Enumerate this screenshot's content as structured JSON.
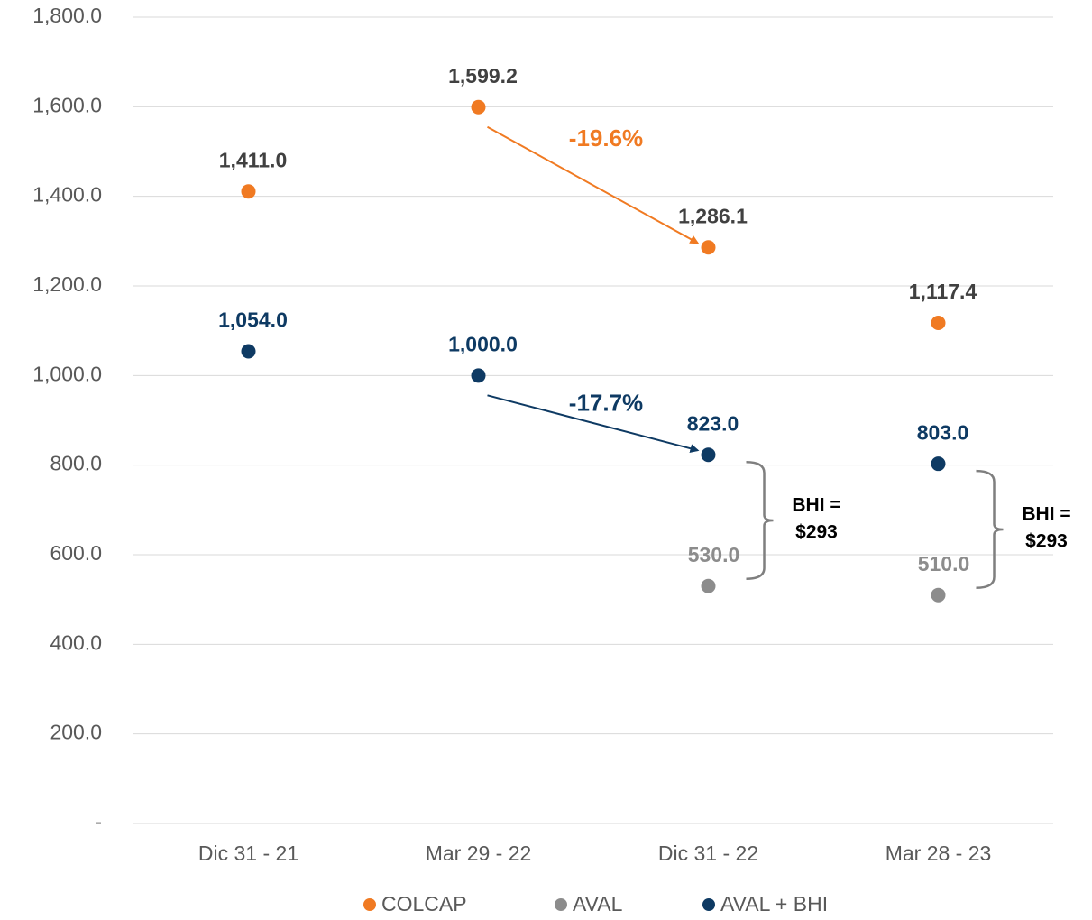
{
  "chart_data": {
    "type": "scatter",
    "categories": [
      "Dic 31 - 21",
      "Mar 29 - 22",
      "Dic 31 - 22",
      "Mar 28 - 23"
    ],
    "series": [
      {
        "name": "COLCAP",
        "color": "#f07a22",
        "label_color": "#404040",
        "values": [
          1411.0,
          1599.2,
          1286.1,
          1117.4
        ],
        "value_labels": [
          "1,411.0",
          "1,599.2",
          "1,286.1",
          "1,117.4"
        ]
      },
      {
        "name": "AVAL",
        "color": "#8c8c8c",
        "label_color": "#8c8c8c",
        "values": [
          null,
          null,
          530.0,
          510.0
        ],
        "value_labels": [
          null,
          null,
          "530.0",
          "510.0"
        ]
      },
      {
        "name": "AVAL + BHI",
        "color": "#0e3a63",
        "label_color": "#0e3a63",
        "values": [
          1054.0,
          1000.0,
          823.0,
          803.0
        ],
        "value_labels": [
          "1,054.0",
          "1,000.0",
          "823.0",
          "803.0"
        ]
      }
    ],
    "ylim": [
      0,
      1800
    ],
    "yticks": [
      {
        "value": 0,
        "label": "-"
      },
      {
        "value": 200,
        "label": "200.0"
      },
      {
        "value": 400,
        "label": "400.0"
      },
      {
        "value": 600,
        "label": "600.0"
      },
      {
        "value": 800,
        "label": "800.0"
      },
      {
        "value": 1000,
        "label": "1,000.0"
      },
      {
        "value": 1200,
        "label": "1,200.0"
      },
      {
        "value": 1400,
        "label": "1,400.0"
      },
      {
        "value": 1600,
        "label": "1,600.0"
      },
      {
        "value": 1800,
        "label": "1,800.0"
      }
    ],
    "grid": true,
    "legend": "bottom",
    "annotations": [
      "-19.6%",
      "-17.7%"
    ],
    "brackets": [
      [
        "BHI =",
        "$293"
      ],
      [
        "BHI =",
        "$293"
      ]
    ]
  }
}
